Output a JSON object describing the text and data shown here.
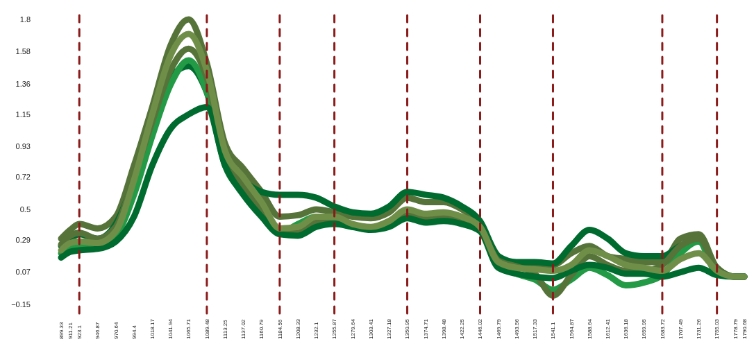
{
  "chart_data": {
    "type": "line",
    "x": [
      899.33,
      911.21,
      923.1,
      946.87,
      970.64,
      994.4,
      1018.17,
      1041.94,
      1065.71,
      1089.48,
      1113.25,
      1137.02,
      1160.79,
      1184.56,
      1208.33,
      1232.1,
      1255.87,
      1279.64,
      1303.41,
      1327.18,
      1350.95,
      1374.71,
      1398.48,
      1422.25,
      1446.02,
      1469.79,
      1493.56,
      1517.33,
      1541.1,
      1564.87,
      1588.64,
      1612.41,
      1636.18,
      1659.95,
      1683.72,
      1707.49,
      1731.26,
      1755.03,
      1778.79,
      1790.68
    ],
    "series": [
      {
        "color": "#56733a",
        "values": [
          0.3,
          0.36,
          0.4,
          0.37,
          0.45,
          0.8,
          1.2,
          1.62,
          1.8,
          1.5,
          0.95,
          0.78,
          0.62,
          0.45,
          0.46,
          0.5,
          0.48,
          0.45,
          0.44,
          0.48,
          0.58,
          0.55,
          0.55,
          0.5,
          0.4,
          0.18,
          0.12,
          0.12,
          0.12,
          0.2,
          0.25,
          0.18,
          0.16,
          0.14,
          0.14,
          0.3,
          0.33,
          0.1,
          0.04,
          0.04
        ]
      },
      {
        "color": "#006b2f",
        "values": [
          0.25,
          0.3,
          0.33,
          0.3,
          0.4,
          0.7,
          1.1,
          1.4,
          1.48,
          1.3,
          0.85,
          0.7,
          0.62,
          0.6,
          0.6,
          0.58,
          0.52,
          0.48,
          0.47,
          0.52,
          0.62,
          0.6,
          0.58,
          0.52,
          0.42,
          0.18,
          0.14,
          0.14,
          0.13,
          0.25,
          0.36,
          0.3,
          0.2,
          0.18,
          0.18,
          0.25,
          0.28,
          0.1,
          0.04,
          0.04
        ]
      },
      {
        "color": "#239a45",
        "values": [
          0.2,
          0.24,
          0.25,
          0.25,
          0.32,
          0.6,
          1.0,
          1.35,
          1.52,
          1.3,
          0.8,
          0.62,
          0.48,
          0.34,
          0.4,
          0.45,
          0.42,
          0.38,
          0.37,
          0.4,
          0.45,
          0.43,
          0.45,
          0.42,
          0.36,
          0.12,
          0.06,
          0.02,
          -0.05,
          0.02,
          0.1,
          0.05,
          -0.02,
          0.0,
          0.05,
          0.2,
          0.28,
          0.06,
          0.04,
          0.04
        ]
      },
      {
        "color": "#56733a",
        "values": [
          0.26,
          0.32,
          0.34,
          0.3,
          0.38,
          0.72,
          1.1,
          1.45,
          1.6,
          1.4,
          0.85,
          0.66,
          0.5,
          0.35,
          0.34,
          0.41,
          0.43,
          0.39,
          0.37,
          0.42,
          0.48,
          0.45,
          0.46,
          0.43,
          0.37,
          0.15,
          0.11,
          0.06,
          -0.09,
          0.05,
          0.18,
          0.12,
          0.08,
          0.08,
          0.12,
          0.25,
          0.3,
          0.1,
          0.04,
          0.04
        ]
      },
      {
        "color": "#006b2f",
        "values": [
          0.17,
          0.21,
          0.22,
          0.23,
          0.28,
          0.45,
          0.8,
          1.05,
          1.15,
          1.2,
          0.8,
          0.6,
          0.45,
          0.33,
          0.32,
          0.38,
          0.4,
          0.38,
          0.36,
          0.38,
          0.44,
          0.41,
          0.42,
          0.4,
          0.35,
          0.1,
          0.06,
          0.04,
          0.03,
          0.08,
          0.12,
          0.1,
          0.06,
          0.06,
          0.04,
          0.07,
          0.1,
          0.05,
          0.04,
          0.04
        ]
      },
      {
        "color": "#6f8f48",
        "values": [
          0.22,
          0.27,
          0.28,
          0.27,
          0.35,
          0.7,
          1.15,
          1.55,
          1.7,
          1.45,
          0.9,
          0.72,
          0.55,
          0.37,
          0.38,
          0.45,
          0.45,
          0.4,
          0.38,
          0.42,
          0.5,
          0.47,
          0.48,
          0.45,
          0.38,
          0.14,
          0.1,
          0.09,
          0.08,
          0.12,
          0.22,
          0.18,
          0.12,
          0.1,
          0.08,
          0.16,
          0.2,
          0.08,
          0.04,
          0.04
        ]
      }
    ],
    "xlim": [
      899.33,
      1790.68
    ],
    "xticks": [
      899.33,
      911.21,
      923.1,
      946.87,
      970.64,
      994.4,
      1018.17,
      1041.94,
      1065.71,
      1089.48,
      1113.25,
      1137.02,
      1160.79,
      1184.56,
      1208.33,
      1232.1,
      1255.87,
      1279.64,
      1303.41,
      1327.18,
      1350.95,
      1374.71,
      1398.48,
      1422.25,
      1446.02,
      1469.79,
      1493.56,
      1517.33,
      1541.1,
      1564.87,
      1588.64,
      1612.41,
      1636.18,
      1659.95,
      1683.72,
      1707.49,
      1731.26,
      1755.03,
      1778.79,
      1790.68
    ],
    "ylim": [
      -0.15,
      1.8
    ],
    "yticks": [
      -0.15,
      0.07,
      0.29,
      0.5,
      0.72,
      0.93,
      1.15,
      1.36,
      1.58,
      1.8
    ],
    "ref_lines": [
      {
        "axis": "x",
        "value": 923.1,
        "color": "#8b1a1a",
        "line_style": "dashed"
      },
      {
        "axis": "x",
        "value": 1089.48,
        "color": "#8b1a1a",
        "line_style": "dashed"
      },
      {
        "axis": "x",
        "value": 1184.56,
        "color": "#8b1a1a",
        "line_style": "dashed"
      },
      {
        "axis": "x",
        "value": 1255.87,
        "color": "#8b1a1a",
        "line_style": "dashed"
      },
      {
        "axis": "x",
        "value": 1350.95,
        "color": "#8b1a1a",
        "line_style": "dashed"
      },
      {
        "axis": "x",
        "value": 1446.02,
        "color": "#8b1a1a",
        "line_style": "dashed"
      },
      {
        "axis": "x",
        "value": 1541.1,
        "color": "#8b1a1a",
        "line_style": "dashed"
      },
      {
        "axis": "x",
        "value": 1683.72,
        "color": "#8b1a1a",
        "line_style": "dashed"
      },
      {
        "axis": "x",
        "value": 1755.03,
        "color": "#8b1a1a",
        "line_style": "dashed"
      }
    ]
  }
}
